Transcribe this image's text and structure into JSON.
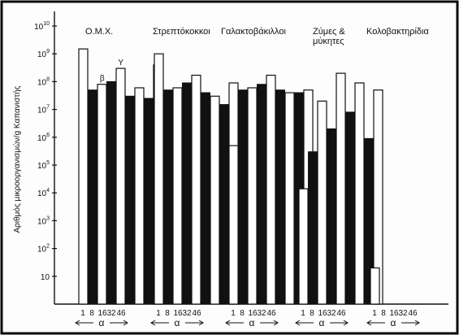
{
  "chart_data": {
    "type": "bar",
    "ylabel": "Αριθμός μικροοργανισμών/g Καπανιστής",
    "yscale": "log10",
    "ylim": [
      1,
      10000000000
    ],
    "ytick_labels": [
      {
        "value": 10,
        "base": "10",
        "exp": ""
      },
      {
        "value": 100,
        "base": "10",
        "exp": "2"
      },
      {
        "value": 1000,
        "base": "10",
        "exp": "3"
      },
      {
        "value": 10000,
        "base": "10",
        "exp": "4"
      },
      {
        "value": 100000,
        "base": "10",
        "exp": "5"
      },
      {
        "value": 1000000,
        "base": "10",
        "exp": "6"
      },
      {
        "value": 10000000,
        "base": "10",
        "exp": "7"
      },
      {
        "value": 100000000,
        "base": "10",
        "exp": "8"
      },
      {
        "value": 1000000000,
        "base": "10",
        "exp": "9"
      },
      {
        "value": 10000000000,
        "base": "10",
        "exp": "10"
      }
    ],
    "groups": [
      {
        "name": "Ο.Μ.Χ.",
        "xticks": [
          "1",
          "8",
          "16",
          "32",
          "46"
        ],
        "axis_symbol": "α",
        "bars": [
          {
            "fill": "white",
            "value": 1500000000
          },
          {
            "fill": "black",
            "value": 50000000
          },
          {
            "fill": "white",
            "value": 80000000
          },
          {
            "fill": "black",
            "value": 100000000
          },
          {
            "fill": "white",
            "value": 300000000
          },
          {
            "fill": "black",
            "value": 30000000
          },
          {
            "fill": "white",
            "value": 60000000
          },
          {
            "fill": "black",
            "value": 25000000
          },
          {
            "fill": "white",
            "value": 400000000
          }
        ],
        "annotations": [
          {
            "text": "β",
            "bar": 2
          },
          {
            "text": "Υ",
            "bar": 4
          }
        ]
      },
      {
        "name": "Στρεπτόκοκκοι",
        "xticks": [
          "1",
          "8",
          "16",
          "32",
          "46"
        ],
        "axis_symbol": "α",
        "bars": [
          {
            "fill": "white",
            "value": 1000000000
          },
          {
            "fill": "black",
            "value": 50000000
          },
          {
            "fill": "white",
            "value": 60000000
          },
          {
            "fill": "black",
            "value": 90000000
          },
          {
            "fill": "white",
            "value": 170000000
          },
          {
            "fill": "black",
            "value": 40000000
          },
          {
            "fill": "white",
            "value": 30000000
          },
          {
            "fill": "black",
            "value": 15000000
          },
          {
            "fill": "white",
            "value": 90000000
          }
        ],
        "annotations": []
      },
      {
        "name": "Γαλακτοβάκιλλοι",
        "xticks": [
          "1",
          "8",
          "16",
          "32",
          "46"
        ],
        "axis_symbol": "α",
        "bars": [
          {
            "fill": "white",
            "value": 500000
          },
          {
            "fill": "black",
            "value": 50000000
          },
          {
            "fill": "white",
            "value": 60000000
          },
          {
            "fill": "black",
            "value": 80000000
          },
          {
            "fill": "white",
            "value": 170000000
          },
          {
            "fill": "black",
            "value": 50000000
          },
          {
            "fill": "white",
            "value": 40000000
          },
          {
            "fill": "black",
            "value": 40000000
          },
          {
            "fill": "white",
            "value": 50000000
          }
        ],
        "annotations": []
      },
      {
        "name": "Ζύμες &\nμύκητες",
        "xticks": [
          "1",
          "8",
          "16",
          "32",
          "46"
        ],
        "axis_symbol": "α",
        "bars": [
          {
            "fill": "white",
            "value": 14000
          },
          {
            "fill": "black",
            "value": 300000
          },
          {
            "fill": "white",
            "value": 20000000
          },
          {
            "fill": "black",
            "value": 2000000
          },
          {
            "fill": "white",
            "value": 200000000
          },
          {
            "fill": "black",
            "value": 8000000
          },
          {
            "fill": "white",
            "value": 90000000
          },
          {
            "fill": "black",
            "value": 900000
          },
          {
            "fill": "white",
            "value": 50000000
          }
        ],
        "annotations": []
      },
      {
        "name": "Κολοβακτηρίδια",
        "xticks": [
          "1",
          "8",
          "16",
          "32",
          "46"
        ],
        "axis_symbol": "α",
        "bars": [
          {
            "fill": "white",
            "value": 20
          }
        ],
        "annotations": []
      }
    ]
  }
}
